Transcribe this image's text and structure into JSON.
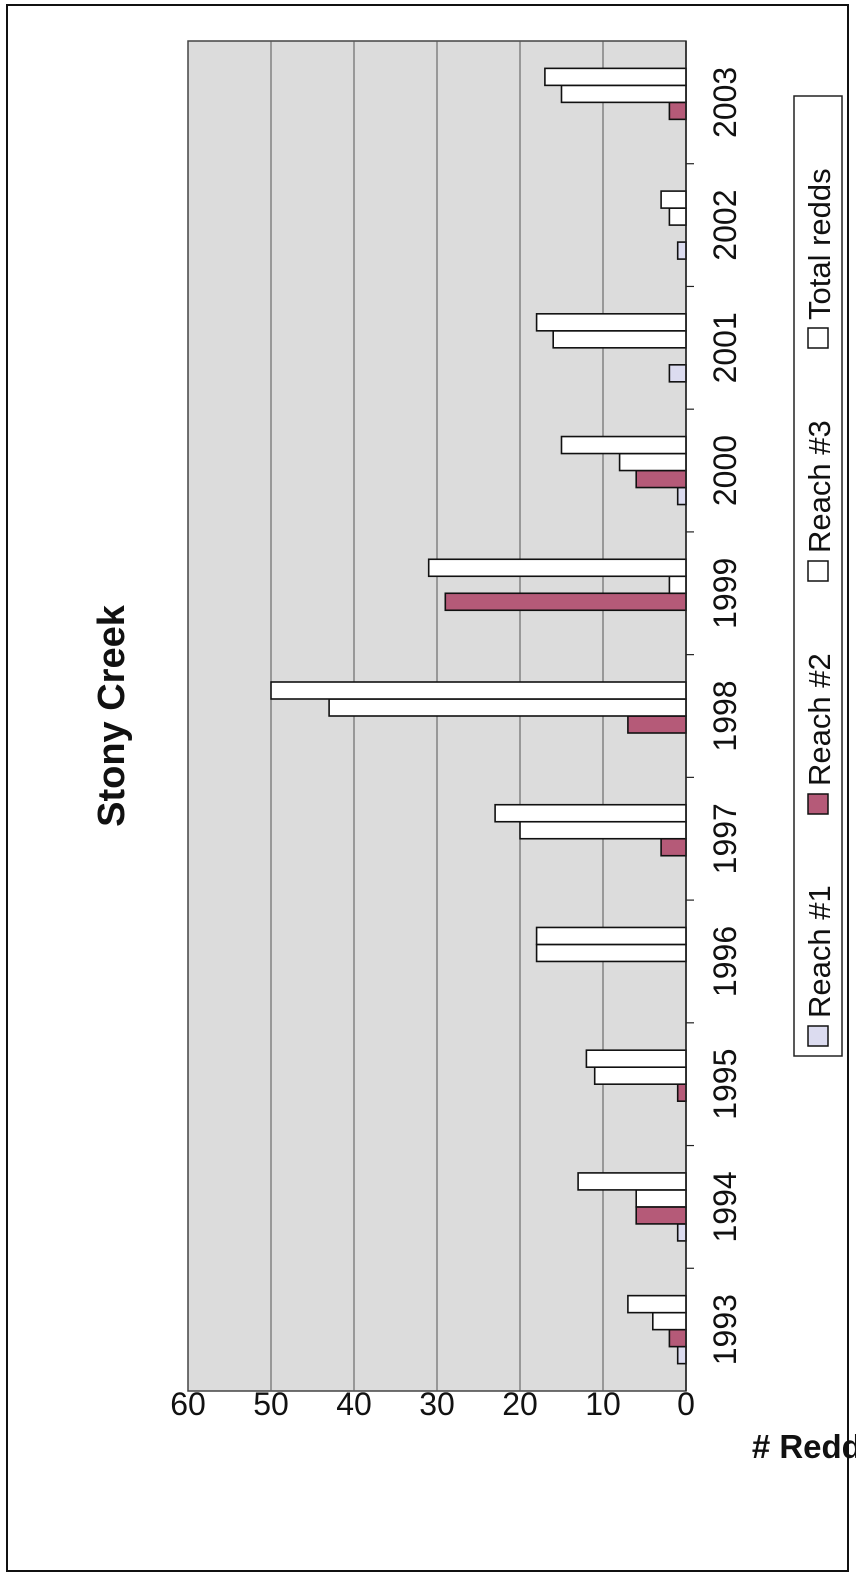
{
  "chart_data": {
    "type": "bar",
    "title": "Stony Creek",
    "xlabel": "",
    "ylabel": "# Redds",
    "ylim": [
      0,
      60
    ],
    "yticks": [
      "0",
      "10",
      "20",
      "30",
      "40",
      "50",
      "60"
    ],
    "categories": [
      "1993",
      "1994",
      "1995",
      "1996",
      "1997",
      "1998",
      "1999",
      "2000",
      "2001",
      "2002",
      "2003"
    ],
    "series": [
      {
        "name": "Reach #1",
        "color": "#dcdcf0",
        "values": [
          1,
          1,
          0,
          0,
          0,
          0,
          0,
          1,
          2,
          1,
          0
        ]
      },
      {
        "name": "Reach #2",
        "color": "#b55a78",
        "values": [
          2,
          6,
          1,
          0,
          3,
          7,
          29,
          6,
          0,
          0,
          2
        ]
      },
      {
        "name": "Reach #3",
        "color": "#ffffff",
        "values": [
          4,
          6,
          11,
          18,
          20,
          43,
          2,
          8,
          16,
          2,
          15
        ]
      },
      {
        "name": "Total redds",
        "color": "#ffffff",
        "values": [
          7,
          13,
          12,
          18,
          23,
          50,
          31,
          15,
          18,
          3,
          17
        ]
      }
    ],
    "grid": true,
    "legend": "bottom",
    "plot_background": "#dcdcdc"
  }
}
